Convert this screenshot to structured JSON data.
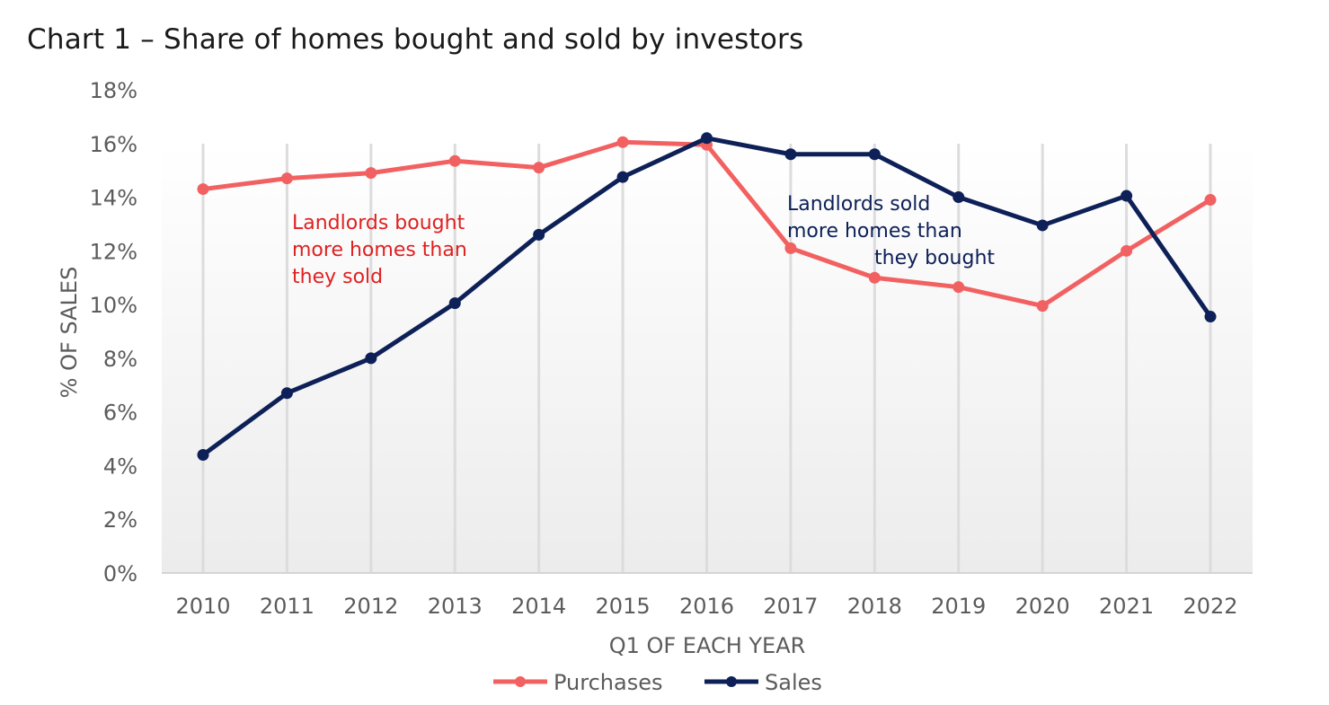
{
  "chart_data": {
    "type": "line",
    "title": "Chart 1 – Share of homes bought and sold by investors",
    "xlabel": "Q1 OF EACH YEAR",
    "ylabel": "% OF SALES",
    "categories": [
      "2010",
      "2011",
      "2012",
      "2013",
      "2014",
      "2015",
      "2016",
      "2017",
      "2018",
      "2019",
      "2020",
      "2021",
      "2022"
    ],
    "ylim": [
      0,
      18
    ],
    "yticks": [
      0,
      2,
      4,
      6,
      8,
      10,
      12,
      14,
      16,
      18
    ],
    "ytick_labels": [
      "0%",
      "2%",
      "4%",
      "6%",
      "8%",
      "10%",
      "12%",
      "14%",
      "16%",
      "18%"
    ],
    "grid": "vertical",
    "legend_position": "bottom",
    "series": [
      {
        "name": "Purchases",
        "color": "#f26161",
        "values": [
          14.3,
          14.7,
          14.9,
          15.35,
          15.1,
          16.05,
          15.95,
          12.1,
          11.0,
          10.65,
          9.95,
          12.0,
          13.9
        ]
      },
      {
        "name": "Sales",
        "color": "#0d2057",
        "values": [
          4.4,
          6.7,
          8.0,
          10.05,
          12.6,
          14.75,
          16.2,
          15.6,
          15.6,
          14.0,
          12.95,
          14.05,
          9.55
        ]
      }
    ],
    "annotations": [
      {
        "lines": [
          "Landlords bought",
          "more homes than",
          "they sold"
        ],
        "color": "#e02020"
      },
      {
        "lines": [
          "Landlords sold",
          "more homes than",
          "they bought"
        ],
        "color": "#0d2057"
      }
    ]
  }
}
